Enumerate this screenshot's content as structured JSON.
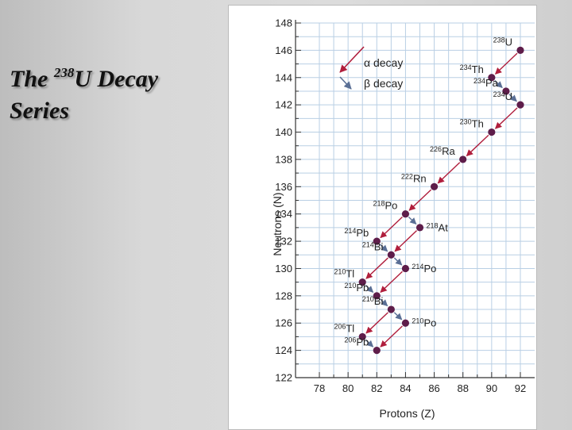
{
  "slide": {
    "title_prefix": "The ",
    "title_mass": "238",
    "title_element": "U Decay",
    "title_line2": "Series"
  },
  "chart_data": {
    "type": "scatter",
    "xlabel": "Protons (Z)",
    "ylabel": "Neutrons (N)",
    "xlim": [
      78,
      92
    ],
    "ylim": [
      122,
      148
    ],
    "x_ticks": [
      78,
      80,
      82,
      84,
      86,
      88,
      90,
      92
    ],
    "y_ticks": [
      122,
      124,
      126,
      128,
      130,
      132,
      134,
      136,
      138,
      140,
      142,
      144,
      146,
      148
    ],
    "grid": true,
    "legend_position": "top-left",
    "legend": [
      {
        "key": "alpha",
        "label": "α decay"
      },
      {
        "key": "beta",
        "label": "β decay"
      }
    ],
    "colors": {
      "alpha": "#b01e3c",
      "beta": "#5a6f95",
      "point": "#5e1d4a",
      "grid": "#b9cfe4"
    },
    "points": [
      {
        "id": "U238",
        "mass": "238",
        "symbol": "U",
        "z": 92,
        "n": 146,
        "label_side": "left"
      },
      {
        "id": "Th234",
        "mass": "234",
        "symbol": "Th",
        "z": 90,
        "n": 144,
        "label_side": "left"
      },
      {
        "id": "Pa234",
        "mass": "234",
        "symbol": "Pa",
        "z": 91,
        "n": 143,
        "label_side": "left"
      },
      {
        "id": "U234",
        "mass": "234",
        "symbol": "U",
        "z": 92,
        "n": 142,
        "label_side": "left"
      },
      {
        "id": "Th230",
        "mass": "230",
        "symbol": "Th",
        "z": 90,
        "n": 140,
        "label_side": "left"
      },
      {
        "id": "Ra226",
        "mass": "226",
        "symbol": "Ra",
        "z": 88,
        "n": 138,
        "label_side": "left"
      },
      {
        "id": "Rn222",
        "mass": "222",
        "symbol": "Rn",
        "z": 86,
        "n": 136,
        "label_side": "left"
      },
      {
        "id": "Po218",
        "mass": "218",
        "symbol": "Po",
        "z": 84,
        "n": 134,
        "label_side": "left"
      },
      {
        "id": "At218",
        "mass": "218",
        "symbol": "At",
        "z": 85,
        "n": 133,
        "label_side": "right"
      },
      {
        "id": "Pb214",
        "mass": "214",
        "symbol": "Pb",
        "z": 82,
        "n": 132,
        "label_side": "left"
      },
      {
        "id": "Bi214",
        "mass": "214",
        "symbol": "Bi",
        "z": 83,
        "n": 131,
        "label_side": "left"
      },
      {
        "id": "Po214",
        "mass": "214",
        "symbol": "Po",
        "z": 84,
        "n": 130,
        "label_side": "right"
      },
      {
        "id": "Tl210",
        "mass": "210",
        "symbol": "Tl",
        "z": 81,
        "n": 129,
        "label_side": "left"
      },
      {
        "id": "Pb210",
        "mass": "210",
        "symbol": "Pb",
        "z": 82,
        "n": 128,
        "label_side": "left"
      },
      {
        "id": "Bi210",
        "mass": "210",
        "symbol": "Bi",
        "z": 83,
        "n": 127,
        "label_side": "left"
      },
      {
        "id": "Po210",
        "mass": "210",
        "symbol": "Po",
        "z": 84,
        "n": 126,
        "label_side": "right"
      },
      {
        "id": "Tl206",
        "mass": "206",
        "symbol": "Tl",
        "z": 81,
        "n": 125,
        "label_side": "left"
      },
      {
        "id": "Pb206",
        "mass": "206",
        "symbol": "Pb",
        "z": 82,
        "n": 124,
        "label_side": "left"
      }
    ],
    "transitions": [
      {
        "from": "U238",
        "to": "Th234",
        "type": "alpha"
      },
      {
        "from": "Th234",
        "to": "Pa234",
        "type": "beta"
      },
      {
        "from": "Pa234",
        "to": "U234",
        "type": "beta"
      },
      {
        "from": "U234",
        "to": "Th230",
        "type": "alpha"
      },
      {
        "from": "Th230",
        "to": "Ra226",
        "type": "alpha"
      },
      {
        "from": "Ra226",
        "to": "Rn222",
        "type": "alpha"
      },
      {
        "from": "Rn222",
        "to": "Po218",
        "type": "alpha"
      },
      {
        "from": "Po218",
        "to": "At218",
        "type": "beta"
      },
      {
        "from": "Po218",
        "to": "Pb214",
        "type": "alpha"
      },
      {
        "from": "At218",
        "to": "Bi214",
        "type": "alpha"
      },
      {
        "from": "Pb214",
        "to": "Bi214",
        "type": "beta"
      },
      {
        "from": "Bi214",
        "to": "Po214",
        "type": "beta"
      },
      {
        "from": "Bi214",
        "to": "Tl210",
        "type": "alpha"
      },
      {
        "from": "Po214",
        "to": "Pb210",
        "type": "alpha"
      },
      {
        "from": "Tl210",
        "to": "Pb210",
        "type": "beta"
      },
      {
        "from": "Pb210",
        "to": "Bi210",
        "type": "beta"
      },
      {
        "from": "Bi210",
        "to": "Po210",
        "type": "beta"
      },
      {
        "from": "Bi210",
        "to": "Tl206",
        "type": "alpha"
      },
      {
        "from": "Po210",
        "to": "Pb206",
        "type": "alpha"
      },
      {
        "from": "Tl206",
        "to": "Pb206",
        "type": "beta"
      }
    ]
  }
}
